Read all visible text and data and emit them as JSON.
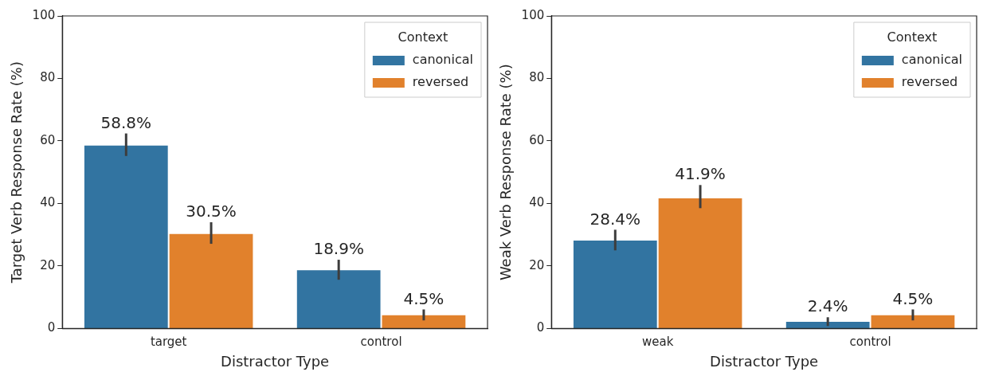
{
  "chart_data": [
    {
      "type": "bar",
      "xlabel": "Distractor Type",
      "ylabel": "Target Verb Response Rate (%)",
      "categories": [
        "target",
        "control"
      ],
      "ylim": [
        0,
        100
      ],
      "yticks": [
        0,
        20,
        40,
        60,
        80,
        100
      ],
      "grid": false,
      "legend": "top right",
      "legend_title": "Context",
      "series": [
        {
          "name": "canonical",
          "color": "#3274a1",
          "values": [
            58.8,
            18.9
          ],
          "errors": [
            [
              55.2,
              62.4
            ],
            [
              15.6,
              22.0
            ]
          ],
          "value_labels": [
            "58.8%",
            "18.9%"
          ]
        },
        {
          "name": "reversed",
          "color": "#e1812c",
          "values": [
            30.5,
            4.5
          ],
          "errors": [
            [
              27.1,
              34.0
            ],
            [
              2.6,
              6.1
            ]
          ],
          "value_labels": [
            "30.5%",
            "4.5%"
          ]
        }
      ]
    },
    {
      "type": "bar",
      "xlabel": "Distractor Type",
      "ylabel": "Weak Verb Response Rate (%)",
      "categories": [
        "weak",
        "control"
      ],
      "ylim": [
        0,
        100
      ],
      "yticks": [
        0,
        20,
        40,
        60,
        80,
        100
      ],
      "grid": false,
      "legend": "top right",
      "legend_title": "Context",
      "series": [
        {
          "name": "canonical",
          "color": "#3274a1",
          "values": [
            28.4,
            2.4
          ],
          "errors": [
            [
              25.0,
              31.6
            ],
            [
              0.8,
              3.6
            ]
          ],
          "value_labels": [
            "28.4%",
            "2.4%"
          ]
        },
        {
          "name": "reversed",
          "color": "#e1812c",
          "values": [
            41.9,
            4.5
          ],
          "errors": [
            [
              38.5,
              45.9
            ],
            [
              2.6,
              6.1
            ]
          ],
          "value_labels": [
            "41.9%",
            "4.5%"
          ]
        }
      ]
    }
  ]
}
